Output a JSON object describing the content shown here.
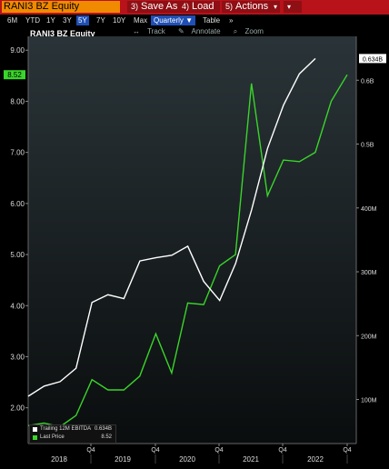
{
  "toolbar": {
    "ticker": "RANI3 BZ Equity",
    "save_as": "Save As",
    "load": "Load",
    "actions": "Actions",
    "save_as_icon": "3)",
    "load_icon": "4)",
    "actions_icon": "5)",
    "actions_arrow": "▾",
    "extra_icon": "▾"
  },
  "ranges": {
    "items": [
      "6M",
      "YTD",
      "1Y",
      "3Y",
      "5Y",
      "7Y",
      "10Y",
      "Max"
    ],
    "active": "5Y",
    "period": "Quarterly",
    "period_arrow": "▼",
    "table": "Table",
    "more": "»"
  },
  "chart_tools": {
    "track": "Track",
    "annotate": "Annotate",
    "zoom": "Zoom"
  },
  "colors": {
    "white_series": "#ffffff",
    "green_series": "#3ad52a",
    "accent_bg": "#b8121b",
    "ticker_bg": "#f08a00"
  },
  "chart_data": {
    "type": "line",
    "title": "RANI3 BZ Equity",
    "left_axis": {
      "ticks": [
        "2.00",
        "3.00",
        "4.00",
        "5.00",
        "6.00",
        "7.00",
        "8.00",
        "9.00"
      ],
      "ylim": [
        1.3,
        9.2
      ]
    },
    "right_axis": {
      "ticks": [
        "100M",
        "200M",
        "300M",
        "400M",
        "0.5B",
        "0.6B"
      ],
      "ylim": [
        31000000,
        663000000
      ]
    },
    "x_quarter_labels": [
      "Q4",
      "Q4",
      "Q4",
      "Q4",
      "Q4",
      "Q4"
    ],
    "x_year_labels": [
      "2018",
      "2019",
      "2020",
      "2021",
      "2022"
    ],
    "series": [
      {
        "name": "Trailing 12M EBITDA",
        "axis": "right",
        "last_label": "0.634B",
        "values": [
          105000000,
          121000000,
          128000000,
          149000000,
          252000000,
          264000000,
          258000000,
          317000000,
          322000000,
          326000000,
          340000000,
          285000000,
          255000000,
          313000000,
          397000000,
          493000000,
          561000000,
          610000000,
          634000000
        ]
      },
      {
        "name": "Last Price",
        "axis": "left",
        "last_label": "8.52",
        "values": [
          1.65,
          1.7,
          1.63,
          1.85,
          2.55,
          2.35,
          2.35,
          2.62,
          3.45,
          2.68,
          4.05,
          4.02,
          4.78,
          5.0,
          8.35,
          6.15,
          6.85,
          6.82,
          7.0,
          8.0,
          8.52
        ]
      }
    ]
  }
}
